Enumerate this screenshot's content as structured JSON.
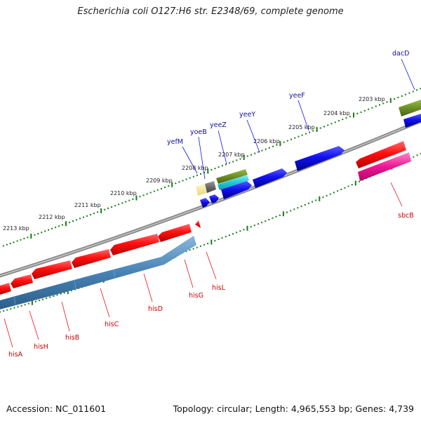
{
  "title": "Escherichia coli O127:H6 str. E2348/69, complete genome",
  "footer": {
    "accession": "Accession: NC_011601",
    "summary": "Topology: circular; Length: 4,965,553 bp; Genes: 4,739"
  },
  "colors": {
    "backbone": "#8a8a8a",
    "ticks": "#1a7a1a",
    "forward_gene": "#1010ee",
    "reverse_gene": "#ee1111",
    "reverse_cds": "#4682b4",
    "top_label": "#1010a0",
    "bottom_label": "#cc0000"
  },
  "scale": {
    "unit": "kbp",
    "ticks": [
      {
        "value": 2203,
        "label": "2203 kbp"
      },
      {
        "value": 2204,
        "label": "2204 kbp"
      },
      {
        "value": 2205,
        "label": "2205 kbp"
      },
      {
        "value": 2206,
        "label": "2206 kbp"
      },
      {
        "value": 2207,
        "label": "2207 kbp"
      },
      {
        "value": 2208,
        "label": "2208 kbp"
      },
      {
        "value": 2209,
        "label": "2209 kbp"
      },
      {
        "value": 2210,
        "label": "2210 kbp"
      },
      {
        "value": 2211,
        "label": "2211 kbp"
      },
      {
        "value": 2212,
        "label": "2212 kbp"
      },
      {
        "value": 2213,
        "label": "2213 kbp"
      }
    ]
  },
  "genes_top": [
    {
      "name": "dacD"
    },
    {
      "name": "yeeF"
    },
    {
      "name": "yeeY"
    },
    {
      "name": "yeeZ"
    },
    {
      "name": "yoeB"
    },
    {
      "name": "yefM"
    }
  ],
  "genes_bottom": [
    {
      "name": "sbcB"
    },
    {
      "name": "hisL"
    },
    {
      "name": "hisG"
    },
    {
      "name": "hisD"
    },
    {
      "name": "hisC"
    },
    {
      "name": "hisB"
    },
    {
      "name": "hisH"
    },
    {
      "name": "hisA"
    }
  ]
}
